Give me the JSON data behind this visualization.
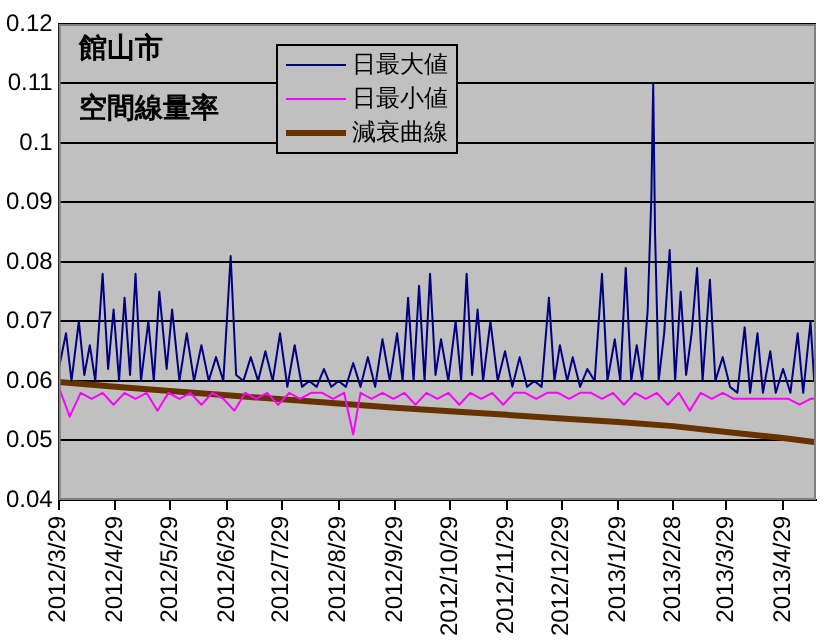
{
  "chart_data": {
    "type": "line",
    "title": "館山市",
    "subtitle": "空間線量率",
    "xlim": [
      "2012-03-29",
      "2013-05-17"
    ],
    "xticks": [
      {
        "value": "2012-03-29",
        "label": "2012/3/29"
      },
      {
        "value": "2012-04-29",
        "label": "2012/4/29"
      },
      {
        "value": "2012-05-29",
        "label": "2012/5/29"
      },
      {
        "value": "2012-06-29",
        "label": "2012/6/29"
      },
      {
        "value": "2012-07-29",
        "label": "2012/7/29"
      },
      {
        "value": "2012-08-29",
        "label": "2012/8/29"
      },
      {
        "value": "2012-09-29",
        "label": "2012/9/29"
      },
      {
        "value": "2012-10-29",
        "label": "2012/10/29"
      },
      {
        "value": "2012-11-29",
        "label": "2012/11/29"
      },
      {
        "value": "2012-12-29",
        "label": "2012/12/29"
      },
      {
        "value": "2013-01-29",
        "label": "2013/1/29"
      },
      {
        "value": "2013-02-28",
        "label": "2013/2/28"
      },
      {
        "value": "2013-03-29",
        "label": "2013/3/29"
      },
      {
        "value": "2013-04-29",
        "label": "2013/4/29"
      }
    ],
    "ylim": [
      0.04,
      0.12
    ],
    "yticks": [
      0.04,
      0.05,
      0.06,
      0.07,
      0.08,
      0.09,
      0.1,
      0.11,
      0.12
    ],
    "grid": "y",
    "legend": "top",
    "marker": "none",
    "series": [
      {
        "name": "日最大値",
        "color": "#000080",
        "x": [
          "2012-03-29",
          "2012-04-02",
          "2012-04-05",
          "2012-04-09",
          "2012-04-12",
          "2012-04-15",
          "2012-04-18",
          "2012-04-22",
          "2012-04-25",
          "2012-04-28",
          "2012-05-01",
          "2012-05-04",
          "2012-05-07",
          "2012-05-10",
          "2012-05-13",
          "2012-05-17",
          "2012-05-20",
          "2012-05-23",
          "2012-05-27",
          "2012-05-30",
          "2012-06-03",
          "2012-06-07",
          "2012-06-11",
          "2012-06-15",
          "2012-06-19",
          "2012-06-23",
          "2012-06-27",
          "2012-07-01",
          "2012-07-04",
          "2012-07-08",
          "2012-07-12",
          "2012-07-16",
          "2012-07-20",
          "2012-07-24",
          "2012-07-28",
          "2012-08-01",
          "2012-08-05",
          "2012-08-09",
          "2012-08-13",
          "2012-08-17",
          "2012-08-21",
          "2012-08-25",
          "2012-08-29",
          "2012-09-02",
          "2012-09-06",
          "2012-09-10",
          "2012-09-14",
          "2012-09-18",
          "2012-09-22",
          "2012-09-26",
          "2012-09-30",
          "2012-10-03",
          "2012-10-06",
          "2012-10-09",
          "2012-10-12",
          "2012-10-15",
          "2012-10-18",
          "2012-10-21",
          "2012-10-24",
          "2012-10-28",
          "2012-11-01",
          "2012-11-04",
          "2012-11-07",
          "2012-11-10",
          "2012-11-13",
          "2012-11-16",
          "2012-11-20",
          "2012-11-24",
          "2012-11-28",
          "2012-12-02",
          "2012-12-06",
          "2012-12-10",
          "2012-12-14",
          "2012-12-18",
          "2012-12-22",
          "2012-12-25",
          "2012-12-28",
          "2013-01-01",
          "2013-01-04",
          "2013-01-08",
          "2013-01-12",
          "2013-01-16",
          "2013-01-20",
          "2013-01-23",
          "2013-01-27",
          "2013-01-30",
          "2013-02-02",
          "2013-02-05",
          "2013-02-08",
          "2013-02-11",
          "2013-02-14",
          "2013-02-16",
          "2013-02-17",
          "2013-02-18",
          "2013-02-20",
          "2013-02-23",
          "2013-02-26",
          "2013-03-01",
          "2013-03-04",
          "2013-03-07",
          "2013-03-10",
          "2013-03-13",
          "2013-03-16",
          "2013-03-20",
          "2013-03-23",
          "2013-03-27",
          "2013-03-31",
          "2013-04-04",
          "2013-04-08",
          "2013-04-11",
          "2013-04-15",
          "2013-04-18",
          "2013-04-22",
          "2013-04-25",
          "2013-04-29",
          "2013-05-03",
          "2013-05-07",
          "2013-05-10",
          "2013-05-14",
          "2013-05-16"
        ],
        "values": [
          0.062,
          0.068,
          0.06,
          0.07,
          0.061,
          0.066,
          0.06,
          0.078,
          0.062,
          0.072,
          0.06,
          0.074,
          0.061,
          0.078,
          0.06,
          0.07,
          0.06,
          0.075,
          0.062,
          0.072,
          0.06,
          0.068,
          0.06,
          0.066,
          0.06,
          0.064,
          0.06,
          0.081,
          0.061,
          0.06,
          0.064,
          0.06,
          0.065,
          0.06,
          0.068,
          0.059,
          0.066,
          0.059,
          0.06,
          0.059,
          0.062,
          0.059,
          0.06,
          0.059,
          0.063,
          0.059,
          0.064,
          0.059,
          0.067,
          0.06,
          0.068,
          0.06,
          0.074,
          0.06,
          0.076,
          0.06,
          0.078,
          0.061,
          0.067,
          0.06,
          0.07,
          0.06,
          0.078,
          0.061,
          0.072,
          0.06,
          0.07,
          0.06,
          0.065,
          0.059,
          0.064,
          0.059,
          0.06,
          0.059,
          0.074,
          0.06,
          0.066,
          0.06,
          0.064,
          0.059,
          0.062,
          0.06,
          0.078,
          0.06,
          0.067,
          0.06,
          0.079,
          0.06,
          0.066,
          0.06,
          0.072,
          0.091,
          0.11,
          0.085,
          0.06,
          0.068,
          0.082,
          0.06,
          0.075,
          0.061,
          0.068,
          0.079,
          0.06,
          0.077,
          0.06,
          0.064,
          0.059,
          0.058,
          0.069,
          0.058,
          0.068,
          0.058,
          0.065,
          0.058,
          0.062,
          0.058,
          0.068,
          0.058,
          0.07,
          0.06
        ]
      },
      {
        "name": "日最小値",
        "color": "#ff00ff",
        "x": [
          "2012-03-29",
          "2012-04-04",
          "2012-04-10",
          "2012-04-16",
          "2012-04-22",
          "2012-04-28",
          "2012-05-04",
          "2012-05-10",
          "2012-05-16",
          "2012-05-22",
          "2012-05-28",
          "2012-06-03",
          "2012-06-09",
          "2012-06-15",
          "2012-06-21",
          "2012-06-27",
          "2012-07-03",
          "2012-07-09",
          "2012-07-15",
          "2012-07-21",
          "2012-07-27",
          "2012-08-02",
          "2012-08-08",
          "2012-08-14",
          "2012-08-20",
          "2012-08-26",
          "2012-09-01",
          "2012-09-06",
          "2012-09-10",
          "2012-09-16",
          "2012-09-22",
          "2012-09-28",
          "2012-10-04",
          "2012-10-10",
          "2012-10-16",
          "2012-10-22",
          "2012-10-28",
          "2012-11-03",
          "2012-11-09",
          "2012-11-15",
          "2012-11-21",
          "2012-11-27",
          "2012-12-03",
          "2012-12-09",
          "2012-12-15",
          "2012-12-21",
          "2012-12-27",
          "2013-01-02",
          "2013-01-08",
          "2013-01-14",
          "2013-01-20",
          "2013-01-26",
          "2013-02-01",
          "2013-02-07",
          "2013-02-13",
          "2013-02-19",
          "2013-02-25",
          "2013-03-03",
          "2013-03-09",
          "2013-03-15",
          "2013-03-21",
          "2013-03-27",
          "2013-04-02",
          "2013-04-08",
          "2013-04-14",
          "2013-04-20",
          "2013-04-26",
          "2013-05-02",
          "2013-05-08",
          "2013-05-14",
          "2013-05-17"
        ],
        "values": [
          0.059,
          0.054,
          0.058,
          0.057,
          0.058,
          0.056,
          0.058,
          0.057,
          0.058,
          0.055,
          0.058,
          0.057,
          0.058,
          0.056,
          0.058,
          0.057,
          0.055,
          0.058,
          0.057,
          0.058,
          0.056,
          0.058,
          0.057,
          0.058,
          0.058,
          0.057,
          0.058,
          0.051,
          0.058,
          0.057,
          0.058,
          0.057,
          0.058,
          0.056,
          0.058,
          0.057,
          0.058,
          0.056,
          0.058,
          0.057,
          0.058,
          0.056,
          0.058,
          0.058,
          0.057,
          0.058,
          0.058,
          0.057,
          0.058,
          0.058,
          0.057,
          0.058,
          0.056,
          0.058,
          0.057,
          0.058,
          0.056,
          0.058,
          0.055,
          0.058,
          0.057,
          0.058,
          0.057,
          0.057,
          0.057,
          0.057,
          0.057,
          0.057,
          0.056,
          0.057,
          0.057
        ]
      },
      {
        "name": "減衰曲線",
        "color": "#663300",
        "x": [
          "2012-03-29",
          "2012-04-29",
          "2012-05-29",
          "2012-06-29",
          "2012-07-29",
          "2012-08-29",
          "2012-09-29",
          "2012-10-29",
          "2012-11-29",
          "2012-12-29",
          "2013-01-29",
          "2013-02-28",
          "2013-03-29",
          "2013-04-29",
          "2013-05-17"
        ],
        "values": [
          0.0598,
          0.059,
          0.0583,
          0.0576,
          0.0569,
          0.0562,
          0.0555,
          0.0549,
          0.0543,
          0.0537,
          0.0531,
          0.0524,
          0.0514,
          0.0504,
          0.0497
        ]
      }
    ]
  }
}
